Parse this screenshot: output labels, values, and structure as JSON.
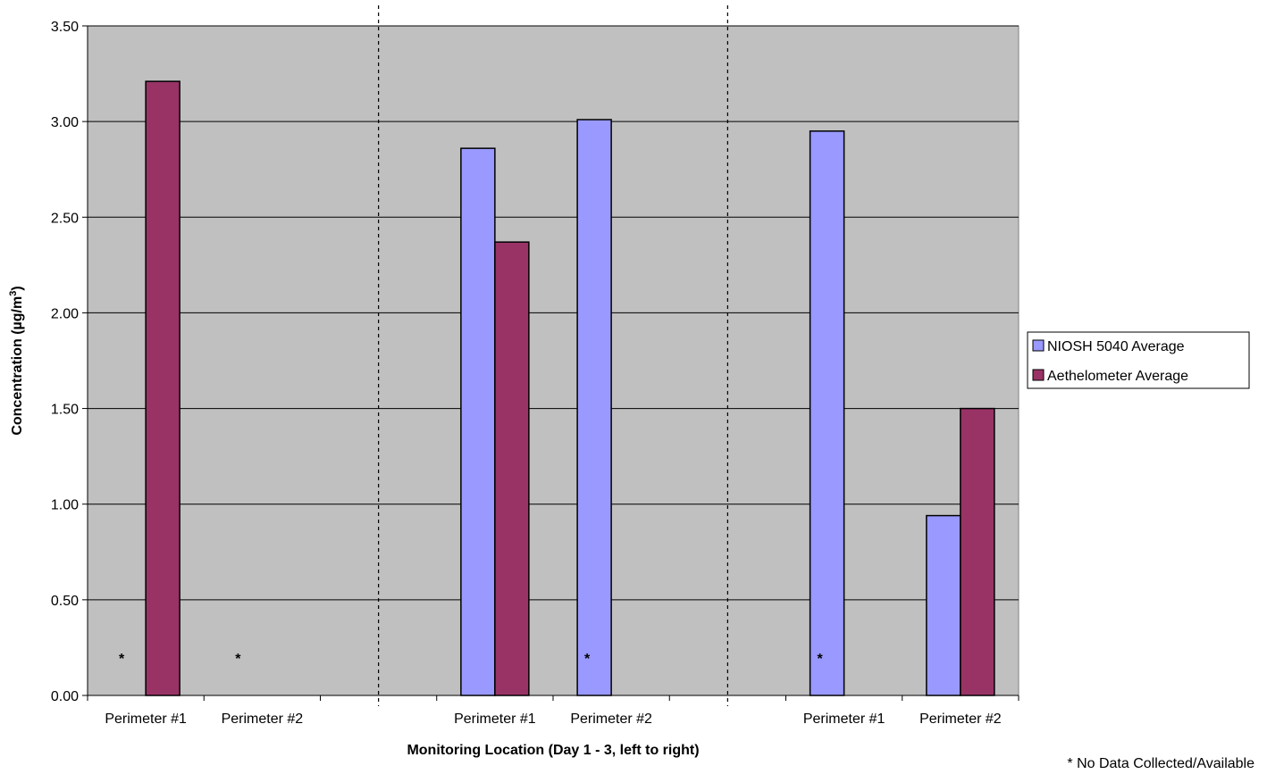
{
  "chart_data": {
    "type": "bar",
    "ylabel": "Concentration (µg/m",
    "ylabel_superscript": "3",
    "ylabel_suffix": ")",
    "xlabel": "Monitoring Location (Day 1 - 3, left to right)",
    "ylim": [
      0,
      3.5
    ],
    "yticks": [
      "0.00",
      "0.50",
      "1.00",
      "1.50",
      "2.00",
      "2.50",
      "3.00",
      "3.50"
    ],
    "grid": true,
    "legend_position": "right",
    "plot_background": "#c0c0c0",
    "day_separator_style": "dashed",
    "categories": [
      "Perimeter #1",
      "Perimeter #2",
      "",
      "Perimeter #1",
      "Perimeter #2",
      "",
      "Perimeter #1",
      "Perimeter #2"
    ],
    "series": [
      {
        "name": "NIOSH 5040 Average",
        "color": "#9999ff",
        "values": [
          null,
          null,
          null,
          2.86,
          3.01,
          null,
          2.95,
          0.94
        ]
      },
      {
        "name": "Aethelometer Average",
        "color": "#993366",
        "values": [
          3.21,
          null,
          null,
          2.37,
          null,
          null,
          null,
          1.5
        ]
      }
    ],
    "no_data_markers": [
      {
        "category_index": 0,
        "text": "*"
      },
      {
        "category_index": 1,
        "text": "*"
      },
      {
        "category_index": 4,
        "text": "*"
      },
      {
        "category_index": 6,
        "text": "*"
      }
    ],
    "footnote": "* No Data Collected/Available"
  }
}
